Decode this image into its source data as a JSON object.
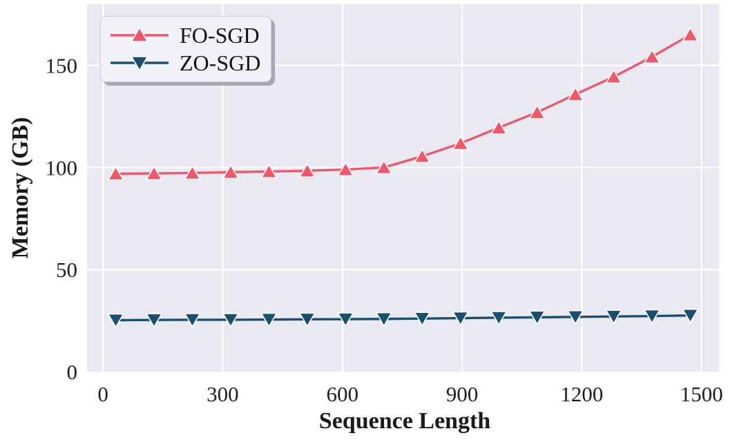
{
  "figure": {
    "background": "#ffffff",
    "plot_background": "#e9e9f2",
    "grid_color": "#ffffff",
    "text_color": "#1f1f1f",
    "tick_font_size": 31
  },
  "chart_data": {
    "type": "line",
    "title": "",
    "xlabel": "Sequence Length",
    "ylabel": "Memory (GB)",
    "xlim": [
      -40,
      1544
    ],
    "ylim": [
      0,
      180
    ],
    "x_ticks": [
      0,
      300,
      600,
      900,
      1200,
      1500
    ],
    "y_ticks": [
      0,
      50,
      100,
      150
    ],
    "grid": true,
    "legend_position": "upper left",
    "x": [
      32,
      128,
      224,
      320,
      416,
      512,
      608,
      704,
      800,
      896,
      992,
      1088,
      1184,
      1280,
      1376,
      1472
    ],
    "series": [
      {
        "name": "FO-SGD",
        "color": "#f0586a",
        "marker": "triangle-up",
        "values": [
          96.9,
          97.1,
          97.3,
          97.7,
          98.0,
          98.4,
          99.0,
          100.0,
          105.5,
          111.8,
          119.5,
          127.0,
          135.8,
          144.4,
          154.2,
          165.0
        ]
      },
      {
        "name": "ZO-SGD",
        "color": "#1a506e",
        "marker": "triangle-down",
        "values": [
          25.2,
          25.3,
          25.4,
          25.4,
          25.5,
          25.6,
          25.7,
          25.8,
          26.0,
          26.2,
          26.4,
          26.6,
          26.8,
          27.0,
          27.2,
          27.5
        ]
      }
    ]
  }
}
